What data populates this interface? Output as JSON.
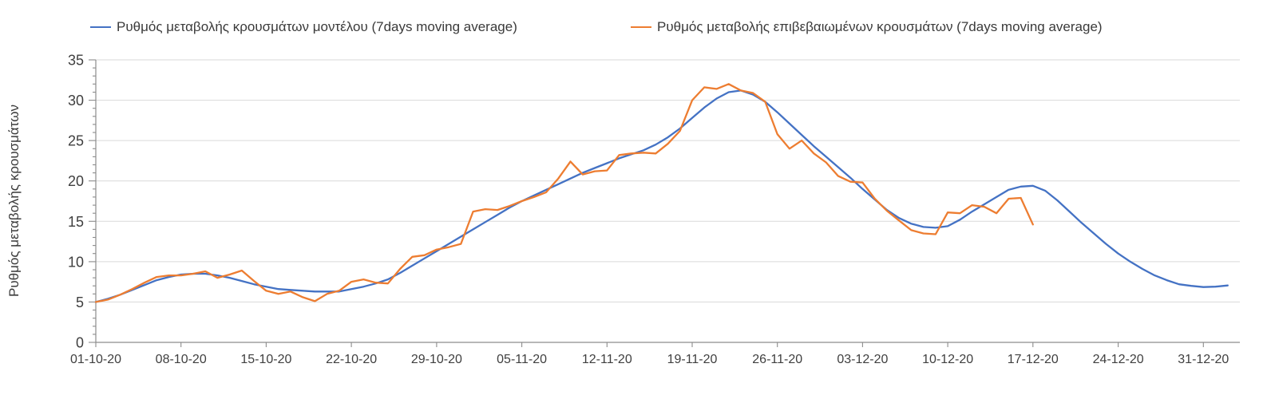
{
  "figure": {
    "background": "#ffffff"
  },
  "chart_data": {
    "type": "line",
    "title": "",
    "xlabel": "",
    "ylabel": "Ρυθμός μεταβολής κρουσμάτων",
    "ylim": [
      0,
      35
    ],
    "y_tick_interval": 5,
    "y_minor_tick_interval": 1,
    "y_tick_labels": [
      "0",
      "5",
      "10",
      "15",
      "20",
      "25",
      "30",
      "35"
    ],
    "grid": "horizontal-major-only",
    "legend_position": "top",
    "x_axis_note": "daily values, day 0 = 01-10-20, plot spans days 0..94",
    "x_range_days": [
      0,
      94
    ],
    "x_ticks": [
      {
        "day": 0,
        "label": "01-10-20"
      },
      {
        "day": 7,
        "label": "08-10-20"
      },
      {
        "day": 14,
        "label": "15-10-20"
      },
      {
        "day": 21,
        "label": "22-10-20"
      },
      {
        "day": 28,
        "label": "29-10-20"
      },
      {
        "day": 35,
        "label": "05-11-20"
      },
      {
        "day": 42,
        "label": "12-11-20"
      },
      {
        "day": 49,
        "label": "19-11-20"
      },
      {
        "day": 56,
        "label": "26-11-20"
      },
      {
        "day": 63,
        "label": "03-12-20"
      },
      {
        "day": 70,
        "label": "10-12-20"
      },
      {
        "day": 77,
        "label": "17-12-20"
      },
      {
        "day": 84,
        "label": "24-12-20"
      },
      {
        "day": 91,
        "label": "31-12-20"
      }
    ],
    "series": [
      {
        "name": "Ρυθμός μεταβολής κρουσμάτων μοντέλου (7days moving average)",
        "color": "#4472C4",
        "start_day": 0,
        "values": [
          5.0,
          5.4,
          5.9,
          6.5,
          7.1,
          7.7,
          8.1,
          8.4,
          8.5,
          8.5,
          8.3,
          8.0,
          7.6,
          7.2,
          6.9,
          6.6,
          6.5,
          6.4,
          6.3,
          6.3,
          6.3,
          6.6,
          6.9,
          7.3,
          7.8,
          8.6,
          9.5,
          10.4,
          11.3,
          12.2,
          13.1,
          14.0,
          14.9,
          15.8,
          16.7,
          17.5,
          18.2,
          18.9,
          19.6,
          20.3,
          21.0,
          21.6,
          22.2,
          22.8,
          23.3,
          23.8,
          24.5,
          25.4,
          26.5,
          27.8,
          29.1,
          30.2,
          31.0,
          31.2,
          30.7,
          29.8,
          28.5,
          27.1,
          25.7,
          24.3,
          23.0,
          21.7,
          20.4,
          19.0,
          17.7,
          16.4,
          15.4,
          14.7,
          14.3,
          14.2,
          14.4,
          15.2,
          16.2,
          17.1,
          18.0,
          18.9,
          19.3,
          19.4,
          18.8,
          17.6,
          16.2,
          14.8,
          13.5,
          12.2,
          11.0,
          10.0,
          9.1,
          8.3,
          7.7,
          7.2,
          7.0,
          6.85,
          6.9,
          7.05
        ]
      },
      {
        "name": "Ρυθμός μεταβολής επιβεβαιωμένων κρουσμάτων (7days moving average)",
        "color": "#ED7D31",
        "start_day": 0,
        "values": [
          5.0,
          5.3,
          5.9,
          6.6,
          7.4,
          8.1,
          8.3,
          8.3,
          8.5,
          8.8,
          8.0,
          8.4,
          8.9,
          7.6,
          6.4,
          6.0,
          6.3,
          5.6,
          5.1,
          6.0,
          6.4,
          7.5,
          7.8,
          7.4,
          7.3,
          9.1,
          10.6,
          10.8,
          11.5,
          11.8,
          12.2,
          16.2,
          16.5,
          16.4,
          16.9,
          17.5,
          18.0,
          18.6,
          20.3,
          22.4,
          20.8,
          21.2,
          21.3,
          23.2,
          23.4,
          23.5,
          23.4,
          24.6,
          26.2,
          30.0,
          31.6,
          31.4,
          32.0,
          31.2,
          30.9,
          29.8,
          25.8,
          24.0,
          25.0,
          23.4,
          22.3,
          20.6,
          19.9,
          19.8,
          17.8,
          16.3,
          15.1,
          13.9,
          13.5,
          13.4,
          16.1,
          16.0,
          17.0,
          16.8,
          16.0,
          17.8,
          17.9,
          14.6
        ]
      }
    ]
  },
  "styles": {
    "gridline_color": "#d9d9d9",
    "axis_color": "#8c8c8c",
    "tick_label_color": "#3f3f3f",
    "line_width": 2.3
  }
}
